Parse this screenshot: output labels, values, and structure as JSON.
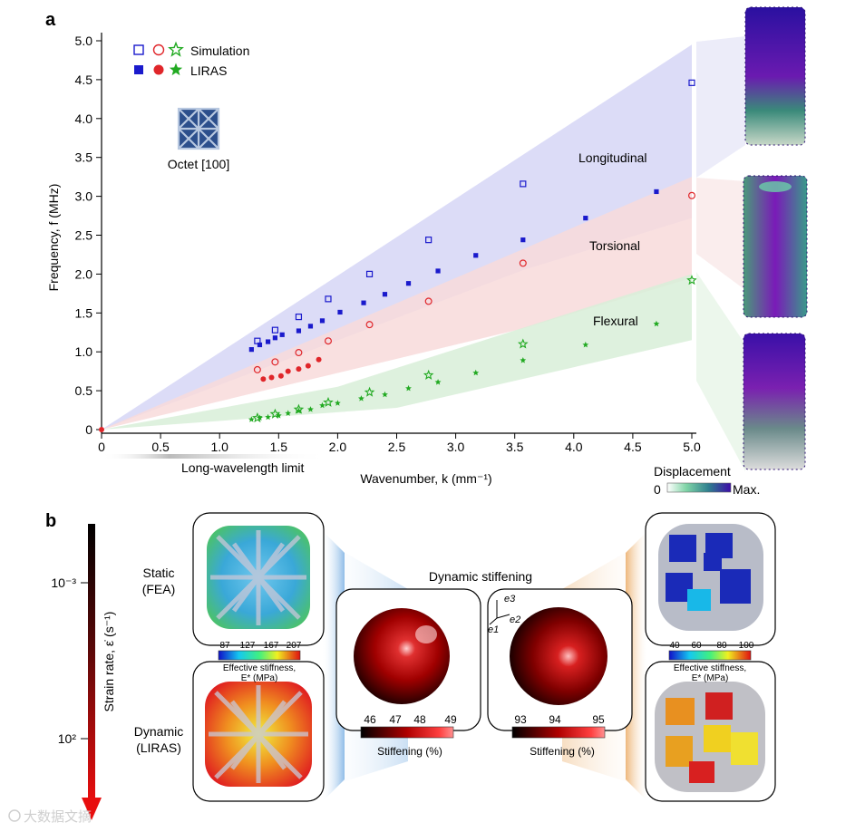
{
  "panel_a": {
    "label": "a",
    "chart_data": {
      "type": "scatter",
      "title": "",
      "xlabel": "Wavenumber, k (mm⁻¹)",
      "ylabel": "Frequency, f (MHz)",
      "xlim": [
        0,
        5.0
      ],
      "ylim": [
        0,
        5.0
      ],
      "x_ticks": [
        "0",
        "0.5",
        "1.0",
        "1.5",
        "2.0",
        "2.5",
        "3.0",
        "3.5",
        "4.0",
        "4.5",
        "5.0"
      ],
      "y_ticks": [
        "0",
        "0.5",
        "1.0",
        "1.5",
        "2.0",
        "2.5",
        "3.0",
        "3.5",
        "4.0",
        "4.5",
        "5.0"
      ],
      "legend": {
        "row1": "Simulation",
        "row2": "LIRAS"
      },
      "series": [
        {
          "name": "Longitudinal (simulation)",
          "mode": "Longitudinal",
          "method": "Simulation",
          "marker": "square-open",
          "color": "#1a1acc",
          "x": [
            1.32,
            1.47,
            1.67,
            1.92,
            2.27,
            2.77,
            3.57,
            5.0
          ],
          "y": [
            1.14,
            1.28,
            1.45,
            1.68,
            2.0,
            2.44,
            3.16,
            4.46
          ]
        },
        {
          "name": "Longitudinal (LIRAS)",
          "mode": "Longitudinal",
          "method": "LIRAS",
          "marker": "square-filled",
          "color": "#1a1acc",
          "x": [
            1.27,
            1.34,
            1.41,
            1.47,
            1.53,
            1.67,
            1.77,
            1.87,
            2.02,
            2.22,
            2.4,
            2.6,
            2.85,
            3.17,
            3.57,
            4.1,
            4.7
          ],
          "y": [
            1.03,
            1.09,
            1.13,
            1.18,
            1.22,
            1.27,
            1.33,
            1.4,
            1.51,
            1.63,
            1.74,
            1.88,
            2.04,
            2.24,
            2.44,
            2.72,
            3.06
          ]
        },
        {
          "name": "Torsional (simulation)",
          "mode": "Torsional",
          "method": "Simulation",
          "marker": "circle-open",
          "color": "#e0262a",
          "x": [
            1.32,
            1.47,
            1.67,
            1.92,
            2.27,
            2.77,
            3.57,
            5.0
          ],
          "y": [
            0.77,
            0.87,
            0.99,
            1.14,
            1.35,
            1.65,
            2.14,
            3.01
          ]
        },
        {
          "name": "Torsional (LIRAS)",
          "mode": "Torsional",
          "method": "LIRAS",
          "marker": "circle-filled",
          "color": "#e0262a",
          "x": [
            1.37,
            1.44,
            1.52,
            1.58,
            1.67,
            1.75,
            1.84
          ],
          "y": [
            0.65,
            0.67,
            0.69,
            0.75,
            0.78,
            0.82,
            0.9
          ]
        },
        {
          "name": "Flexural (simulation)",
          "mode": "Flexural",
          "method": "Simulation",
          "marker": "star-open",
          "color": "#22aa22",
          "x": [
            1.32,
            1.47,
            1.67,
            1.92,
            2.27,
            2.77,
            3.57,
            5.0
          ],
          "y": [
            0.15,
            0.2,
            0.26,
            0.35,
            0.48,
            0.7,
            1.1,
            1.92
          ]
        },
        {
          "name": "Flexural (LIRAS)",
          "mode": "Flexural",
          "method": "LIRAS",
          "marker": "star-filled",
          "color": "#22aa22",
          "x": [
            1.27,
            1.34,
            1.41,
            1.5,
            1.58,
            1.67,
            1.77,
            1.87,
            2.0,
            2.2,
            2.4,
            2.6,
            2.85,
            3.17,
            3.57,
            4.1,
            4.7
          ],
          "y": [
            0.13,
            0.15,
            0.16,
            0.18,
            0.21,
            0.24,
            0.26,
            0.31,
            0.34,
            0.4,
            0.45,
            0.53,
            0.61,
            0.73,
            0.89,
            1.09,
            1.36
          ]
        },
        {
          "name": "Origin",
          "mode": "All",
          "method": "Reference",
          "marker": "circle-filled",
          "color": "#e0262a",
          "x": [
            0
          ],
          "y": [
            0
          ]
        }
      ],
      "annotations": [
        "Longitudinal",
        "Torsional",
        "Flexural",
        "Long-wavelength limit"
      ]
    },
    "lattice_label": "Octet [100]",
    "displacement": {
      "title": "Displacement",
      "min": "0",
      "max": "Max."
    }
  },
  "panel_b": {
    "label": "b",
    "strain_axis": {
      "label": "Strain rate, ε̇ (s⁻¹)",
      "tick_low": "10⁻³",
      "tick_high": "10²"
    },
    "static_label": [
      "Static",
      "(FEA)"
    ],
    "dynamic_label": [
      "Dynamic",
      "(LIRAS)"
    ],
    "center_title": "Dynamic stiffening",
    "left_colorbar": {
      "ticks": [
        "87",
        "127",
        "167",
        "207"
      ],
      "label1": "Effective stiffness,",
      "label2": "E* (MPa)"
    },
    "right_colorbar": {
      "ticks": [
        "40",
        "60",
        "80",
        "100"
      ],
      "label1": "Effective stiffness,",
      "label2": "E* (MPa)"
    },
    "sphere1_colorbar": {
      "ticks": [
        "46",
        "47",
        "48",
        "49"
      ],
      "label": "Stiffening (%)"
    },
    "sphere2_colorbar": {
      "ticks": [
        "93",
        "94",
        "95"
      ],
      "label": "Stiffening (%)"
    },
    "axes_labels": [
      "e3",
      "e2",
      "e1"
    ],
    "watermark": "大数据文摘"
  },
  "colors": {
    "blue": "#1a1acc",
    "red": "#e0262a",
    "green": "#22aa22",
    "purple": "#4b1aa8"
  }
}
